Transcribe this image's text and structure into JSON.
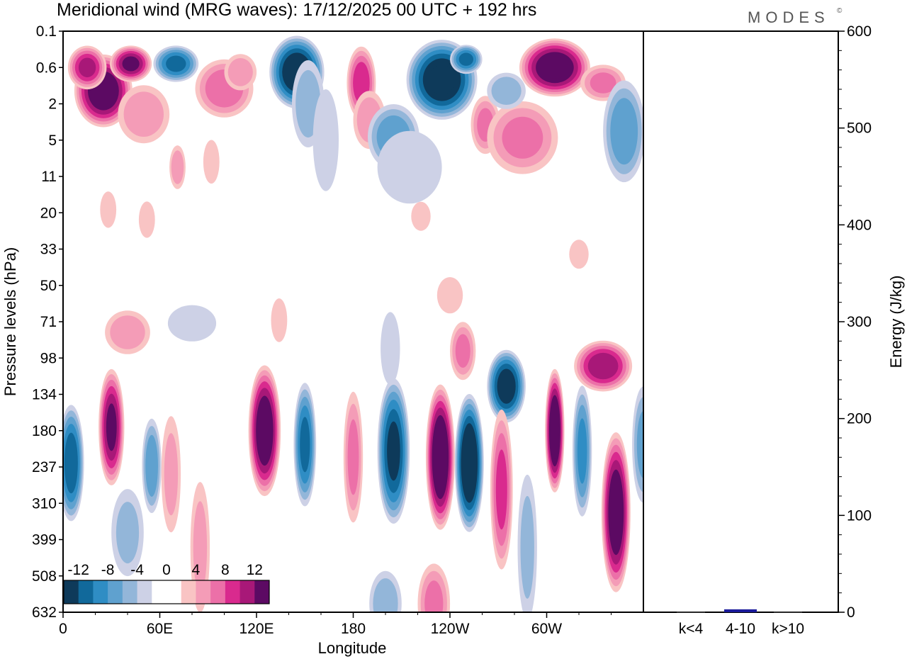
{
  "chart_data": {
    "type": "heatmap",
    "title": "Meridional wind (MRG waves):  17/12/2025  00 UTC  + 192 hrs",
    "brand": "MODES",
    "brand_mark": "©",
    "xlabel": "Longitude",
    "ylabel": "Pressure levels (hPa)",
    "x_ticks": [
      "0",
      "60E",
      "120E",
      "180",
      "120W",
      "60W"
    ],
    "y_ticks": [
      "0.1",
      "0.6",
      "2",
      "5",
      "11",
      "20",
      "33",
      "50",
      "71",
      "98",
      "134",
      "180",
      "237",
      "310",
      "399",
      "508",
      "632"
    ],
    "colorbar": {
      "labels": [
        "-12",
        "-8",
        "-4",
        "0",
        "4",
        "8",
        "12"
      ],
      "colors": [
        "#0e3a5a",
        "#11699b",
        "#2f8dc4",
        "#5fa1cf",
        "#93b6d9",
        "#cdd1e6",
        "#ffffff",
        "#ffffff",
        "#f9c4c4",
        "#f49cb7",
        "#ec70a8",
        "#d92a8e",
        "#a81878",
        "#5c0a63"
      ]
    },
    "wind_blobs": [
      {
        "lon": 25,
        "lev": 1.3,
        "w": 18,
        "h": 1.0,
        "v": 14
      },
      {
        "lon": 15,
        "lev": 0.6,
        "w": 12,
        "h": 0.6,
        "v": 10
      },
      {
        "lon": 42,
        "lev": 0.5,
        "w": 13,
        "h": 0.5,
        "v": 12
      },
      {
        "lon": 50,
        "lev": 2.6,
        "w": 16,
        "h": 0.8,
        "v": 5
      },
      {
        "lon": 70,
        "lev": 0.5,
        "w": 14,
        "h": 0.5,
        "v": -10
      },
      {
        "lon": 100,
        "lev": 1.2,
        "w": 18,
        "h": 0.8,
        "v": 7
      },
      {
        "lon": 110,
        "lev": 0.7,
        "w": 10,
        "h": 0.5,
        "v": 5
      },
      {
        "lon": 145,
        "lev": 0.7,
        "w": 17,
        "h": 1.0,
        "v": -14
      },
      {
        "lon": 152,
        "lev": 2.0,
        "w": 10,
        "h": 1.2,
        "v": -5
      },
      {
        "lon": 163,
        "lev": 5.0,
        "w": 8,
        "h": 1.4,
        "v": -3
      },
      {
        "lon": 185,
        "lev": 1.0,
        "w": 9,
        "h": 1.0,
        "v": 9
      },
      {
        "lon": 190,
        "lev": 3.0,
        "w": 10,
        "h": 0.8,
        "v": 5
      },
      {
        "lon": 205,
        "lev": 4.6,
        "w": 16,
        "h": 0.9,
        "v": -7
      },
      {
        "lon": 215,
        "lev": 9.0,
        "w": 20,
        "h": 1.0,
        "v": -3
      },
      {
        "lon": 235,
        "lev": 0.9,
        "w": 22,
        "h": 1.1,
        "v": -14
      },
      {
        "lon": 250,
        "lev": 0.4,
        "w": 10,
        "h": 0.4,
        "v": -10
      },
      {
        "lon": 262,
        "lev": 3.4,
        "w": 9,
        "h": 0.8,
        "v": 6
      },
      {
        "lon": 285,
        "lev": 4.7,
        "w": 22,
        "h": 1.0,
        "v": 6
      },
      {
        "lon": 275,
        "lev": 1.3,
        "w": 12,
        "h": 0.5,
        "v": -5
      },
      {
        "lon": 305,
        "lev": 0.6,
        "w": 22,
        "h": 0.8,
        "v": 14
      },
      {
        "lon": 335,
        "lev": 1.0,
        "w": 14,
        "h": 0.5,
        "v": 6
      },
      {
        "lon": 348,
        "lev": 4.0,
        "w": 13,
        "h": 1.4,
        "v": -7
      },
      {
        "lon": 71,
        "lev": 9.0,
        "w": 5,
        "h": 0.6,
        "v": 5
      },
      {
        "lon": 92,
        "lev": 8.0,
        "w": 5,
        "h": 0.6,
        "v": 3
      },
      {
        "lon": 28,
        "lev": 19.0,
        "w": 5,
        "h": 0.5,
        "v": 3
      },
      {
        "lon": 52,
        "lev": 22.0,
        "w": 5,
        "h": 0.5,
        "v": 3
      },
      {
        "lon": 222,
        "lev": 21.0,
        "w": 6,
        "h": 0.4,
        "v": 3
      },
      {
        "lon": 320,
        "lev": 35.0,
        "w": 6,
        "h": 0.4,
        "v": 3
      },
      {
        "lon": 240,
        "lev": 55.0,
        "w": 8,
        "h": 0.5,
        "v": 3
      },
      {
        "lon": 40,
        "lev": 78.0,
        "w": 14,
        "h": 0.6,
        "v": 5
      },
      {
        "lon": 80,
        "lev": 72.0,
        "w": 15,
        "h": 0.5,
        "v": -3
      },
      {
        "lon": 134,
        "lev": 70.0,
        "w": 5,
        "h": 0.6,
        "v": 3
      },
      {
        "lon": 248,
        "lev": 92.0,
        "w": 8,
        "h": 0.8,
        "v": 6
      },
      {
        "lon": 203,
        "lev": 90.0,
        "w": 6,
        "h": 1.0,
        "v": -3
      },
      {
        "lon": 335,
        "lev": 105.0,
        "w": 18,
        "h": 0.7,
        "v": 11
      },
      {
        "lon": 275,
        "lev": 125.0,
        "w": 12,
        "h": 1.0,
        "v": -13
      },
      {
        "lon": 5,
        "lev": 230.0,
        "w": 8,
        "h": 1.6,
        "v": -11
      },
      {
        "lon": 30,
        "lev": 175.0,
        "w": 8,
        "h": 1.6,
        "v": 12
      },
      {
        "lon": 55,
        "lev": 235.0,
        "w": 6,
        "h": 1.3,
        "v": -7
      },
      {
        "lon": 67,
        "lev": 250.0,
        "w": 6,
        "h": 1.6,
        "v": 4
      },
      {
        "lon": 85,
        "lev": 420.0,
        "w": 6,
        "h": 1.8,
        "v": 4
      },
      {
        "lon": 40,
        "lev": 380.0,
        "w": 10,
        "h": 1.2,
        "v": -4
      },
      {
        "lon": 125,
        "lev": 180.0,
        "w": 10,
        "h": 1.8,
        "v": 14
      },
      {
        "lon": 150,
        "lev": 200.0,
        "w": 7,
        "h": 1.7,
        "v": -10
      },
      {
        "lon": 180,
        "lev": 220.0,
        "w": 6,
        "h": 1.8,
        "v": 6
      },
      {
        "lon": 205,
        "lev": 210.0,
        "w": 10,
        "h": 2.0,
        "v": -12
      },
      {
        "lon": 234,
        "lev": 220.0,
        "w": 9,
        "h": 2.0,
        "v": 15
      },
      {
        "lon": 252,
        "lev": 230.0,
        "w": 9,
        "h": 1.9,
        "v": -15
      },
      {
        "lon": 272,
        "lev": 280.0,
        "w": 7,
        "h": 2.2,
        "v": 8
      },
      {
        "lon": 288,
        "lev": 420.0,
        "w": 6,
        "h": 2.0,
        "v": -4
      },
      {
        "lon": 305,
        "lev": 180.0,
        "w": 6,
        "h": 1.7,
        "v": 15
      },
      {
        "lon": 322,
        "lev": 210.0,
        "w": 6,
        "h": 1.8,
        "v": -8
      },
      {
        "lon": 343,
        "lev": 330.0,
        "w": 9,
        "h": 2.2,
        "v": 14
      },
      {
        "lon": 200,
        "lev": 600.0,
        "w": 10,
        "h": 0.9,
        "v": -5
      },
      {
        "lon": 230,
        "lev": 600.0,
        "w": 10,
        "h": 1.1,
        "v": 6
      },
      {
        "lon": 360,
        "lev": 200.0,
        "w": 7,
        "h": 1.6,
        "v": -6
      }
    ],
    "energy_axis": {
      "label": "Energy (J/kg)",
      "ylim": [
        0,
        600
      ],
      "ticks": [
        "0",
        "100",
        "200",
        "300",
        "400",
        "500",
        "600"
      ]
    },
    "energy_bars": {
      "categories": [
        "k<4",
        "4-10",
        "k>10"
      ],
      "values": [
        0.5,
        3.0,
        0.5
      ],
      "color": "#1a1a9a"
    }
  }
}
